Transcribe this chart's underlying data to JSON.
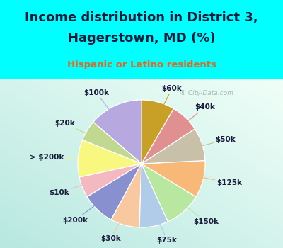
{
  "title_line1": "Income distribution in District 3,",
  "title_line2": "Hagerstown, MD (%)",
  "subtitle": "Hispanic or Latino residents",
  "labels": [
    "$100k",
    "$20k",
    "> $200k",
    "$10k",
    "$200k",
    "$30k",
    "$75k",
    "$150k",
    "$125k",
    "$50k",
    "$40k",
    "$60k"
  ],
  "sizes": [
    13,
    5,
    9,
    5,
    8,
    7,
    7,
    9,
    9,
    8,
    7,
    8
  ],
  "colors": [
    "#b8a8e0",
    "#c0d890",
    "#f8f880",
    "#f4b8c0",
    "#8890d0",
    "#f8c8a0",
    "#b0cce8",
    "#b8e8a0",
    "#f8b878",
    "#c8c0a8",
    "#e09090",
    "#c8a028"
  ],
  "bg_top": "#00ffff",
  "bg_chart_tl": "#b8e8e0",
  "bg_chart_br": "#e8f8f0",
  "watermark": "City-Data.com",
  "title_color": "#1a1a3a",
  "subtitle_color": "#e06820",
  "title_fontsize": 13,
  "subtitle_fontsize": 9.5,
  "label_fontsize": 7.5,
  "startangle": 90
}
